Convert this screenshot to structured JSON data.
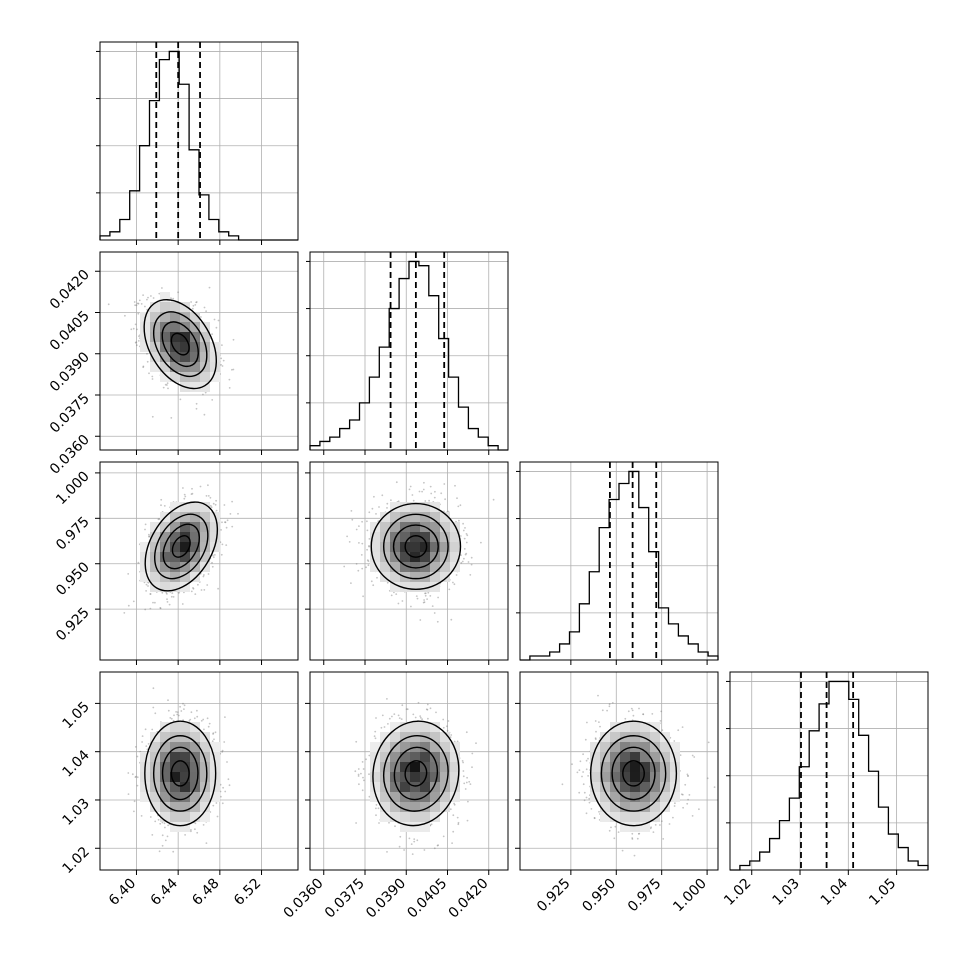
{
  "chart_data": {
    "type": "corner",
    "n_params": 4,
    "params": [
      {
        "range": [
          6.365,
          6.555
        ],
        "ticks": [
          6.4,
          6.44,
          6.48,
          6.52
        ],
        "tick_labels": [
          "6.40",
          "6.44",
          "6.48",
          "6.52"
        ],
        "quantiles": [
          6.419,
          6.44,
          6.461
        ],
        "hist_edges": [
          6.365,
          6.3745,
          6.384,
          6.3935,
          6.403,
          6.4125,
          6.422,
          6.4315,
          6.441,
          6.4505,
          6.46,
          6.4695,
          6.479,
          6.4885,
          6.498,
          6.5075,
          6.517,
          6.5265,
          6.536,
          6.5455,
          6.555
        ],
        "hist_counts": [
          1,
          2,
          5,
          12,
          23,
          34,
          44,
          46,
          38,
          22,
          11,
          5,
          2,
          1,
          0,
          0,
          0,
          0,
          0,
          0
        ]
      },
      {
        "range": [
          0.0355,
          0.0427
        ],
        "ticks": [
          0.036,
          0.0375,
          0.039,
          0.0405,
          0.042
        ],
        "tick_labels": [
          "0.0360",
          "0.0375",
          "0.0390",
          "0.0405",
          "0.0420"
        ],
        "quantiles": [
          0.03843,
          0.03935,
          0.04038
        ],
        "hist_edges": [
          0.0355,
          0.03586,
          0.03622,
          0.03658,
          0.03694,
          0.0373,
          0.03766,
          0.03802,
          0.03838,
          0.03874,
          0.0391,
          0.03946,
          0.03982,
          0.04018,
          0.04054,
          0.0409,
          0.04126,
          0.04162,
          0.04198,
          0.04234,
          0.0427
        ],
        "hist_counts": [
          1,
          2,
          3,
          5,
          7,
          11,
          17,
          24,
          33,
          40,
          44,
          43,
          36,
          26,
          17,
          10,
          5,
          3,
          1,
          0
        ]
      },
      {
        "range": [
          0.897,
          1.006
        ],
        "ticks": [
          0.925,
          0.95,
          0.975,
          1.0
        ],
        "tick_labels": [
          "0.925",
          "0.950",
          "0.975",
          "1.000"
        ],
        "quantiles": [
          0.9465,
          0.959,
          0.972
        ],
        "hist_edges": [
          0.897,
          0.90245,
          0.9079,
          0.91335,
          0.9188,
          0.92425,
          0.9297,
          0.93515,
          0.9406,
          0.94605,
          0.9515,
          0.95695,
          0.9624,
          0.96785,
          0.9733,
          0.97875,
          0.9842,
          0.98965,
          0.9951,
          1.00055,
          1.006
        ],
        "hist_counts": [
          0,
          1,
          1,
          2,
          4,
          7,
          14,
          22,
          33,
          40,
          44,
          47,
          38,
          27,
          13,
          9,
          6,
          4,
          2,
          1
        ]
      },
      {
        "range": [
          1.0155,
          1.0565
        ],
        "ticks": [
          1.02,
          1.03,
          1.04,
          1.05
        ],
        "tick_labels": [
          "1.02",
          "1.03",
          "1.04",
          "1.05"
        ],
        "quantiles": [
          1.0302,
          1.0355,
          1.041
        ],
        "hist_edges": [
          1.0155,
          1.01755,
          1.0196,
          1.02165,
          1.0237,
          1.02575,
          1.0278,
          1.02985,
          1.0319,
          1.03395,
          1.036,
          1.03805,
          1.0401,
          1.04215,
          1.0442,
          1.04625,
          1.0483,
          1.05035,
          1.0524,
          1.05445,
          1.0565
        ],
        "hist_counts": [
          0,
          1,
          2,
          4,
          7,
          11,
          16,
          23,
          31,
          37,
          42,
          42,
          38,
          30,
          22,
          14,
          8,
          5,
          2,
          1
        ]
      }
    ],
    "pairs": [
      {
        "x": 0,
        "y": 1,
        "center": [
          6.442,
          0.03935
        ],
        "sigma": [
          0.017,
          0.00078
        ],
        "rho": -0.35
      },
      {
        "x": 0,
        "y": 2,
        "center": [
          6.443,
          0.9595
        ],
        "sigma": [
          0.017,
          0.0118
        ],
        "rho": 0.35
      },
      {
        "x": 1,
        "y": 2,
        "center": [
          0.03935,
          0.9595
        ],
        "sigma": [
          0.00078,
          0.0118
        ],
        "rho": 0.0
      },
      {
        "x": 0,
        "y": 3,
        "center": [
          6.442,
          1.0355
        ],
        "sigma": [
          0.017,
          0.0052
        ],
        "rho": 0.0
      },
      {
        "x": 1,
        "y": 3,
        "center": [
          0.03935,
          1.0355
        ],
        "sigma": [
          0.00078,
          0.0052
        ],
        "rho": 0.05
      },
      {
        "x": 2,
        "y": 3,
        "center": [
          0.9595,
          1.0355
        ],
        "sigma": [
          0.0118,
          0.0052
        ],
        "rho": 0.0
      }
    ],
    "contour_levels": [
      0.5,
      1.0,
      1.5,
      2.0
    ],
    "grid": true,
    "colors": {
      "ink": "#000000",
      "grid": "#b0b0b0",
      "points": "#7f7f7f",
      "frame": "#000000"
    }
  }
}
